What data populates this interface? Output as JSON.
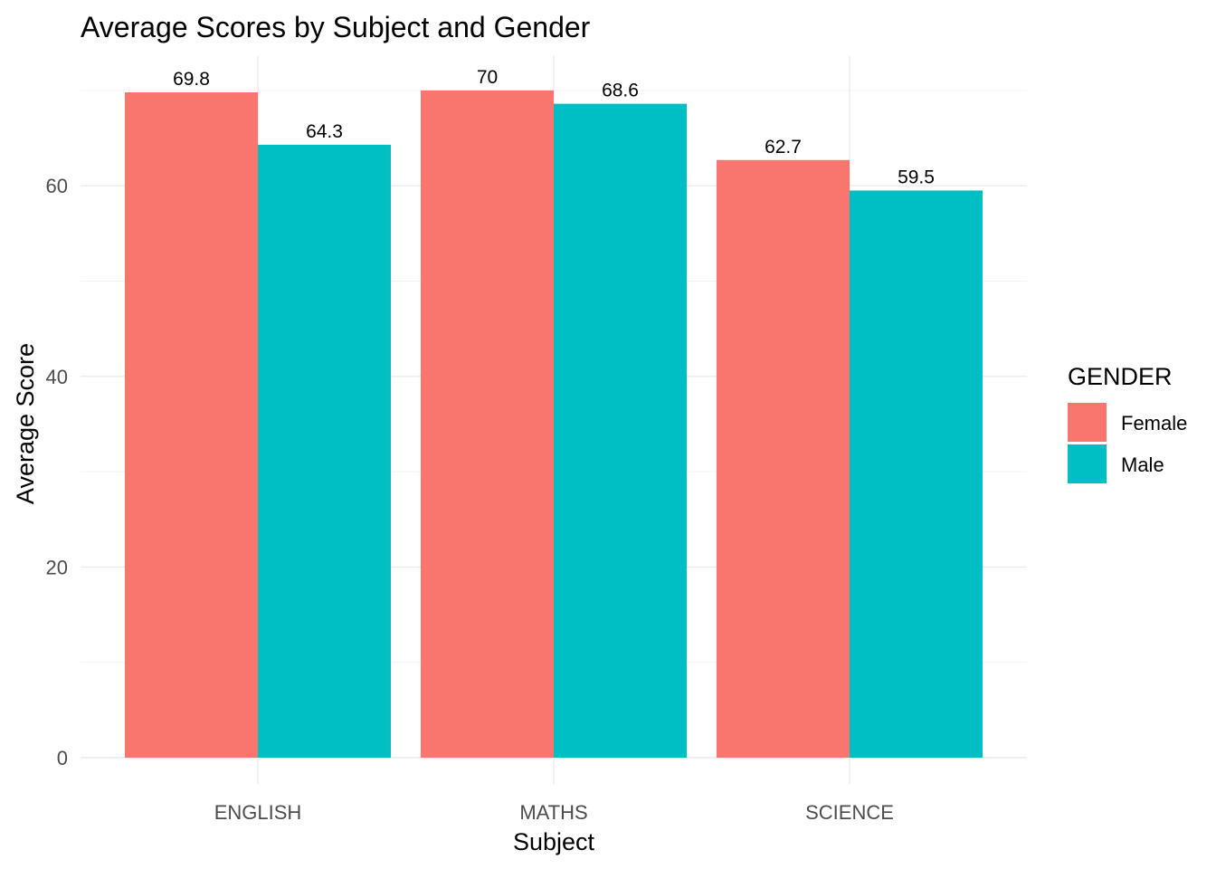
{
  "chart_data": {
    "type": "bar",
    "title": "Average Scores by Subject and Gender",
    "xlabel": "Subject",
    "ylabel": "Average Score",
    "categories": [
      "ENGLISH",
      "MATHS",
      "SCIENCE"
    ],
    "series": [
      {
        "name": "Female",
        "color": "#F8766D",
        "values": [
          69.8,
          70,
          62.7
        ],
        "labels": [
          "69.8",
          "70",
          "62.7"
        ]
      },
      {
        "name": "Male",
        "color": "#00BFC4",
        "values": [
          64.3,
          68.6,
          59.5
        ],
        "labels": [
          "64.3",
          "68.6",
          "59.5"
        ]
      }
    ],
    "yticks": [
      0,
      20,
      40,
      60
    ],
    "ytick_labels": [
      "0",
      "20",
      "40",
      "60"
    ],
    "ylim": [
      0,
      73.5
    ],
    "grid": true,
    "legend": {
      "title": "GENDER",
      "position": "right"
    }
  }
}
